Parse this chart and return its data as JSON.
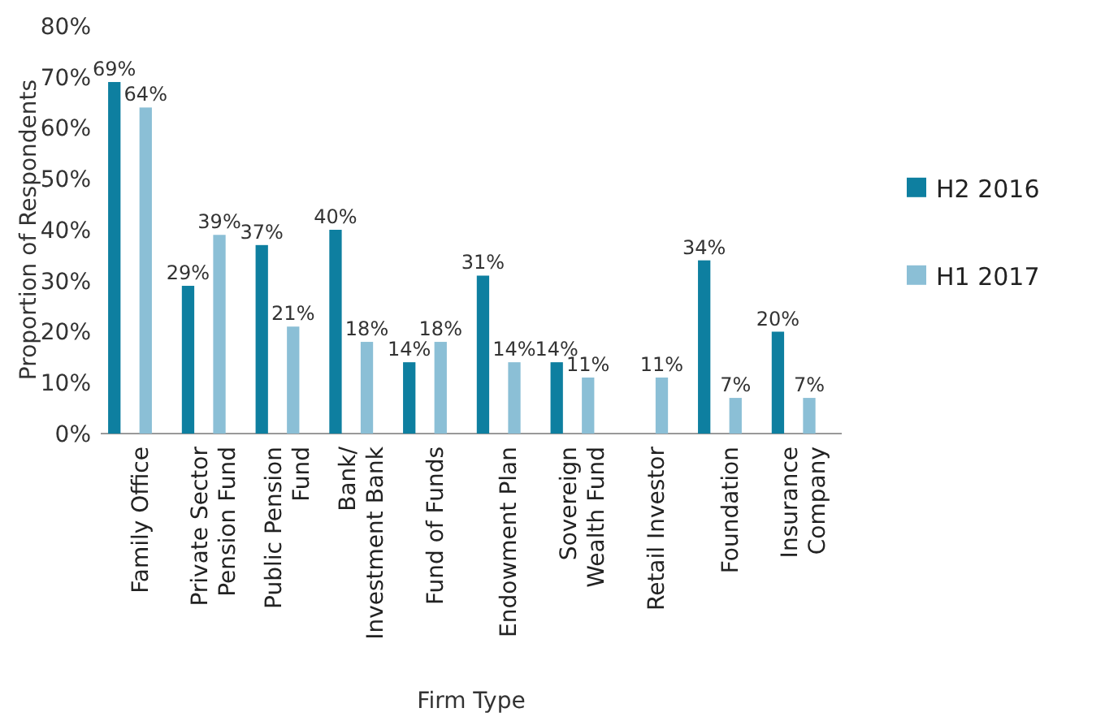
{
  "chart_data": {
    "type": "bar",
    "xlabel": "Firm Type",
    "ylabel": "Proportion of Respondents",
    "categories": [
      "Family Office",
      "Private Sector Pension Fund",
      "Public Pension Fund",
      "Bank/ Investment Bank",
      "Fund of Funds",
      "Endowment Plan",
      "Sovereign Wealth Fund",
      "Retail Investor",
      "Foundation",
      "Insurance Company"
    ],
    "series": [
      {
        "name": "H2 2016",
        "color": "#0e7fa0",
        "values": [
          69,
          29,
          37,
          40,
          14,
          31,
          14,
          null,
          34,
          20
        ],
        "value_labels": [
          "69%",
          "29%",
          "37%",
          "40%",
          "14%",
          "31%",
          "14%",
          null,
          "34%",
          "20%"
        ]
      },
      {
        "name": "H1 2017",
        "color": "#8bbfd6",
        "values": [
          64,
          39,
          21,
          18,
          18,
          14,
          11,
          11,
          7,
          7
        ],
        "value_labels": [
          "64%",
          "39%",
          "21%",
          "18%",
          "18%",
          "14%",
          "11%",
          "11%",
          "7%",
          "7%"
        ]
      }
    ],
    "ylim": [
      0,
      80
    ],
    "yticks": [
      {
        "value": 0,
        "label": "0%"
      },
      {
        "value": 10,
        "label": "10%"
      },
      {
        "value": 20,
        "label": "20%"
      },
      {
        "value": 30,
        "label": "30%"
      },
      {
        "value": 40,
        "label": "40%"
      },
      {
        "value": 50,
        "label": "50%"
      },
      {
        "value": 60,
        "label": "60%"
      },
      {
        "value": 70,
        "label": "70%"
      },
      {
        "value": 80,
        "label": "80%"
      }
    ],
    "legend": "right"
  }
}
